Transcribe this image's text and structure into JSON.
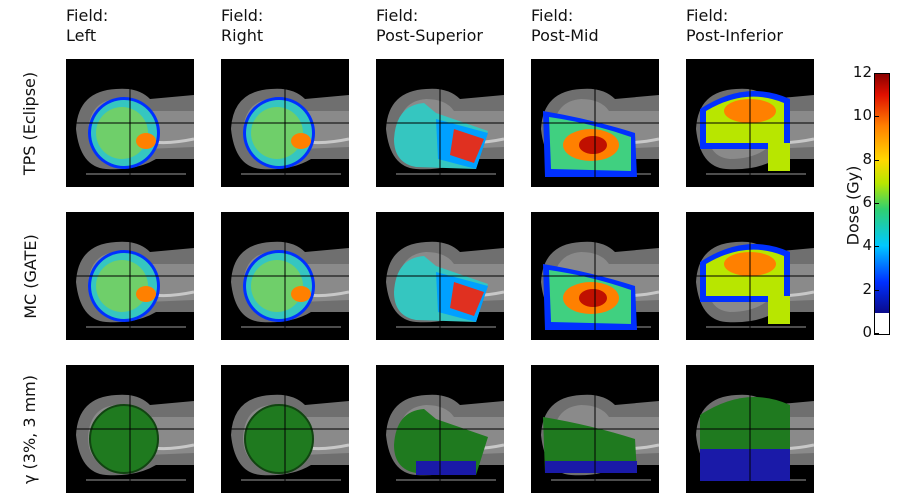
{
  "columns": [
    {
      "line1": "Field:",
      "line2": "Left"
    },
    {
      "line1": "Field:",
      "line2": "Right"
    },
    {
      "line1": "Field:",
      "line2": "Post-Superior"
    },
    {
      "line1": "Field:",
      "line2": "Post-Mid"
    },
    {
      "line1": "Field:",
      "line2": "Post-Inferior"
    }
  ],
  "rows": [
    {
      "label": "TPS (Eclipse)"
    },
    {
      "label": "MC (GATE)"
    },
    {
      "label": "γ (3%, 3 mm)"
    }
  ],
  "colorbar": {
    "label": "Dose (Gy)",
    "ticks": [
      "0",
      "2",
      "4",
      "6",
      "8",
      "10",
      "12"
    ],
    "min": 0,
    "max": 12,
    "colormap": [
      "#0a0a8a",
      "#0030ff",
      "#00c8ff",
      "#30d070",
      "#b8e600",
      "#ffd800",
      "#ff8000",
      "#e01000",
      "#8a0000"
    ]
  },
  "colors": {
    "gamma_pass": "#1f7a1f",
    "gamma_fail": "#1a1aa8"
  }
}
